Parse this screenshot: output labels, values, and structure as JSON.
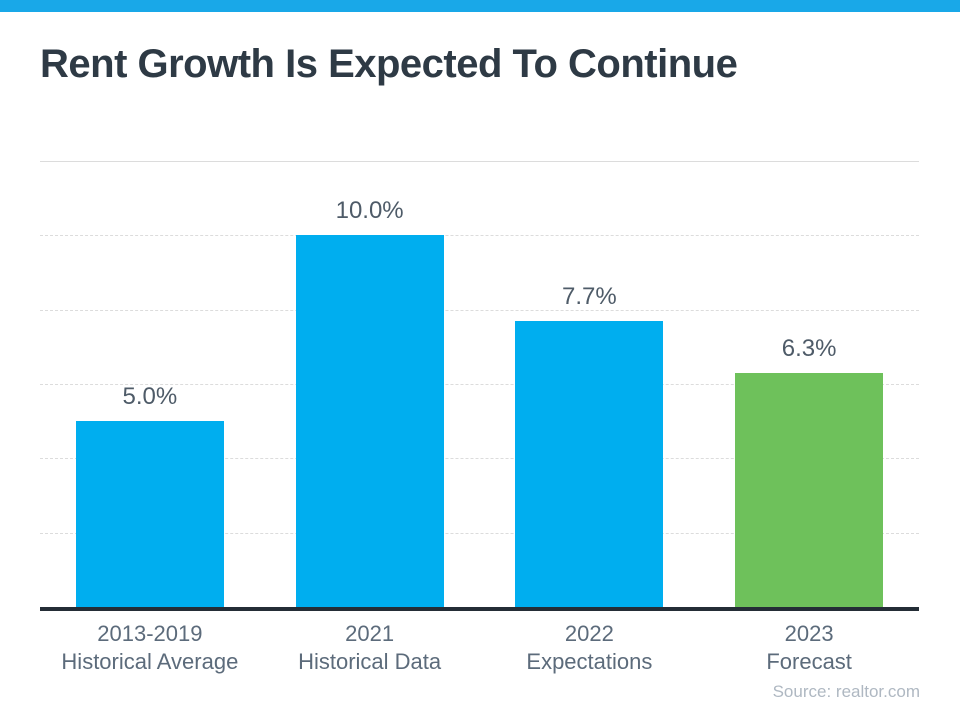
{
  "banner": {
    "color": "#19a8e8"
  },
  "header": {
    "title": "Rent Growth Is Expected To Continue"
  },
  "footer": {
    "source": "Source: realtor.com"
  },
  "colors": {
    "bar_blue": "#00aeef",
    "bar_green": "#6ec15b",
    "axis": "#242d36",
    "gridline": "#dcdcdc",
    "title_text": "#2e3a45",
    "value_label_text": "#4e5b68",
    "category_label_text": "#5c6b7b",
    "source_text": "#afb8c2"
  },
  "chart_data": {
    "type": "bar",
    "title": "Rent Growth Is Expected To Continue",
    "categories": [
      "2013-2019\nHistorical Average",
      "2021\nHistorical Data",
      "2022\nExpectations",
      "2023\nForecast"
    ],
    "values": [
      5.0,
      10.0,
      7.7,
      6.3
    ],
    "value_labels": [
      "5.0%",
      "10.0%",
      "7.7%",
      "6.3%"
    ],
    "bar_colors": [
      "#00aeef",
      "#00aeef",
      "#00aeef",
      "#6ec15b"
    ],
    "xlabel": "",
    "ylabel": "",
    "ylim": [
      0,
      12
    ],
    "gridline_step": 2,
    "grid": true,
    "legend": false,
    "y_axis_tick_labels_visible": false,
    "source": "Source: realtor.com"
  }
}
